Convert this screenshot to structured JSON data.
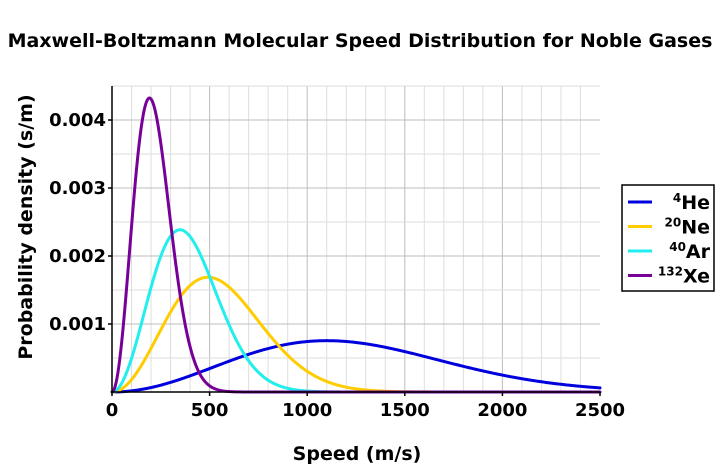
{
  "chart_data": {
    "type": "line",
    "title": "Maxwell-Boltzmann Molecular Speed Distribution for Noble Gases",
    "xlabel": "Speed (m/s)",
    "ylabel": "Probability density (s/m)",
    "xlim": [
      0,
      2500
    ],
    "ylim": [
      0,
      0.0045
    ],
    "xticks": [
      0,
      500,
      1000,
      1500,
      2000,
      2500
    ],
    "xtick_labels": [
      "0",
      "500",
      "1000",
      "1500",
      "2000",
      "2500"
    ],
    "yticks": [
      0.001,
      0.002,
      0.003,
      0.004
    ],
    "ytick_labels": [
      "0.001",
      "0.002",
      "0.003",
      "0.004"
    ],
    "grid": true,
    "legend_position": "right",
    "series": [
      {
        "name": "He",
        "mass_number": "4",
        "label": "4He",
        "peak_speed": 1100,
        "color": "#0000dd"
      },
      {
        "name": "Ne",
        "mass_number": "20",
        "label": "20Ne",
        "peak_speed": 492,
        "color": "#ffcc00"
      },
      {
        "name": "Ar",
        "mass_number": "40",
        "label": "40Ar",
        "peak_speed": 348,
        "color": "#22eeee"
      },
      {
        "name": "Xe",
        "mass_number": "132",
        "label": "132Xe",
        "peak_speed": 192,
        "color": "#770099"
      }
    ]
  }
}
